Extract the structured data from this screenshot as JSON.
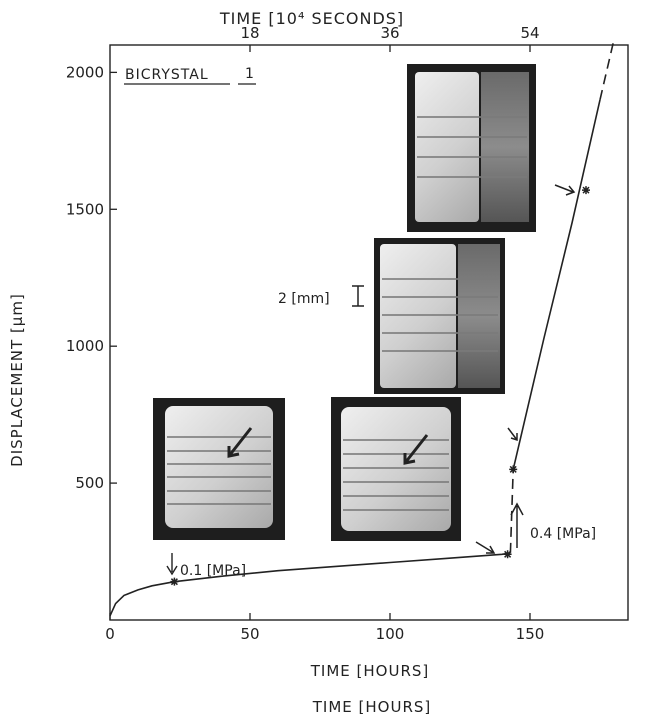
{
  "chart_data": {
    "type": "line",
    "title": "",
    "xlabel": "TIME [HOURS]",
    "xlabel_repeat": "TIME [HOURS]",
    "x2label": "TIME [10⁴ SECONDS]",
    "ylabel": "DISPLACEMENT [µm]",
    "xlim": [
      0,
      185
    ],
    "ylim": [
      0,
      2100
    ],
    "x_ticks": [
      0,
      50,
      100,
      150
    ],
    "x_tick_labels": [
      "0",
      "50",
      "100",
      "150"
    ],
    "x2_ticks": [
      18,
      36,
      54
    ],
    "x2_tick_labels": [
      "18",
      "36",
      "54"
    ],
    "y_ticks": [
      500,
      1000,
      1500,
      2000
    ],
    "y_tick_labels": [
      "500",
      "1000",
      "1500",
      "2000"
    ],
    "grid": false,
    "series": [
      {
        "style": "solid",
        "x": [
          0,
          2,
          5,
          10,
          15,
          23,
          40,
          60,
          80,
          100,
          120,
          140,
          143
        ],
        "y": [
          15,
          60,
          90,
          110,
          125,
          140,
          160,
          180,
          195,
          210,
          225,
          240,
          245
        ]
      },
      {
        "style": "dashed",
        "x": [
          143,
          144
        ],
        "y": [
          245,
          550
        ]
      },
      {
        "style": "solid",
        "x": [
          144,
          155,
          165,
          175
        ],
        "y": [
          550,
          1030,
          1450,
          1900
        ]
      },
      {
        "style": "dashed",
        "x": [
          175,
          180
        ],
        "y": [
          1900,
          2120
        ]
      }
    ],
    "markers": [
      {
        "x": 23,
        "y": 140
      },
      {
        "x": 142,
        "y": 240
      },
      {
        "x": 144,
        "y": 550
      },
      {
        "x": 170,
        "y": 1570
      }
    ],
    "annotations": {
      "specimen": "BICRYSTAL",
      "specimen_id": "1",
      "stress_1": "0.1 [MPa]",
      "stress_2": "0.4 [MPa]",
      "scale": "2 [mm]"
    }
  }
}
